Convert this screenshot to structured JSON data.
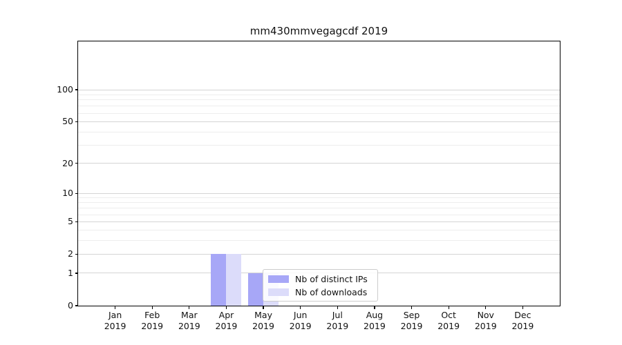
{
  "title": "mm430mmvegagcdf 2019",
  "chart_data": {
    "type": "bar",
    "title": "mm430mmvegagcdf 2019",
    "xlabel": "",
    "ylabel": "",
    "year": "2019",
    "categories": [
      "Jan",
      "Feb",
      "Mar",
      "Apr",
      "May",
      "Jun",
      "Jul",
      "Aug",
      "Sep",
      "Oct",
      "Nov",
      "Dec"
    ],
    "series": [
      {
        "name": "Nb of distinct IPs",
        "color": "#a7a7f7",
        "values": [
          0,
          0,
          0,
          2,
          1,
          0,
          0,
          0,
          0,
          0,
          0,
          0
        ]
      },
      {
        "name": "Nb of downloads",
        "color": "#dcdcfa",
        "values": [
          0,
          0,
          0,
          2,
          1,
          0,
          0,
          0,
          0,
          0,
          0,
          0
        ]
      }
    ],
    "yscale": "log1p",
    "yticks": [
      0,
      1,
      2,
      5,
      10,
      20,
      50,
      100
    ],
    "yticks_minor": [
      3,
      4,
      6,
      7,
      8,
      9,
      30,
      40,
      60,
      70,
      80,
      90
    ],
    "ylim": [
      0,
      113
    ],
    "grid": true,
    "legend_position": "lower right inside plot"
  },
  "legend": {
    "items": [
      {
        "label": "Nb of distinct IPs",
        "color": "#a7a7f7"
      },
      {
        "label": "Nb of downloads",
        "color": "#dcdcfa"
      }
    ]
  }
}
